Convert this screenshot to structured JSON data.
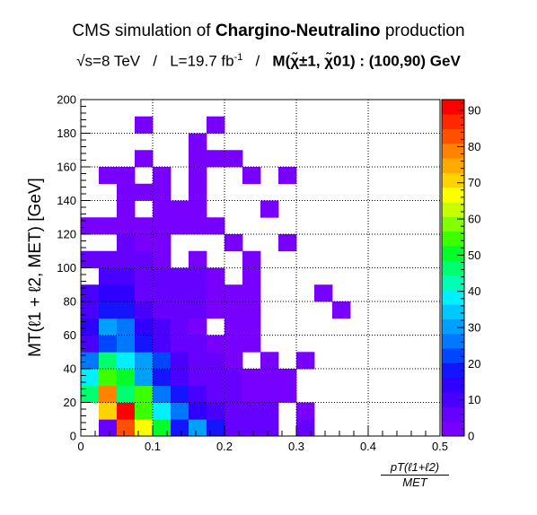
{
  "chart_data": {
    "type": "heatmap",
    "title_parts": {
      "prefix": "CMS simulation of ",
      "bold": "Chargino-Neutralino",
      "suffix": " production"
    },
    "subtitle_parts": {
      "energy": "√s=8 TeV",
      "separator": "/",
      "lumi": "L=19.7 fb",
      "lumi_exp": "-1",
      "mass_label": "M(χ̃",
      "mass_rest": "±1, χ̃01) : (100,90) GeV"
    },
    "xlabel_num": "pT(ℓ1+ℓ2)",
    "xlabel_den": "MET",
    "ylabel": "MT(ℓ1 + ℓ2, MET)   [GeV]",
    "x_bins": {
      "min": 0,
      "max": 0.5,
      "n": 20
    },
    "y_bins": {
      "min": 0,
      "max": 200,
      "n": 20
    },
    "xlim": [
      0,
      0.5
    ],
    "ylim": [
      0,
      200
    ],
    "x_ticks": [
      "0",
      "0.1",
      "0.2",
      "0.3",
      "0.4",
      "0.5"
    ],
    "y_ticks": [
      "0",
      "20",
      "40",
      "60",
      "80",
      "100",
      "120",
      "140",
      "160",
      "180",
      "200"
    ],
    "z_range": [
      0,
      93
    ],
    "z_ticks": [
      "0",
      "10",
      "20",
      "30",
      "40",
      "50",
      "60",
      "70",
      "80",
      "90"
    ],
    "grid": true,
    "palette": [
      "#7800ff",
      "#6600ff",
      "#4a00ff",
      "#3000ff",
      "#1414ff",
      "#0046ff",
      "#0078ff",
      "#00a0ff",
      "#00c8ff",
      "#00f0ff",
      "#00ffb4",
      "#00ff6e",
      "#00ff28",
      "#3cff00",
      "#82ff00",
      "#c8ff00",
      "#ffff00",
      "#ffd200",
      "#ffaa00",
      "#ff8200",
      "#ff5000",
      "#ff2800",
      "#ff0000"
    ],
    "cells": [
      [
        1,
        0,
        5
      ],
      [
        2,
        0,
        84
      ],
      [
        3,
        0,
        68
      ],
      [
        4,
        0,
        52
      ],
      [
        5,
        0,
        20
      ],
      [
        6,
        0,
        30
      ],
      [
        7,
        0,
        19
      ],
      [
        8,
        0,
        5
      ],
      [
        9,
        0,
        5
      ],
      [
        10,
        0,
        5
      ],
      [
        12,
        0,
        5
      ],
      [
        1,
        1,
        70
      ],
      [
        2,
        1,
        90
      ],
      [
        3,
        1,
        55
      ],
      [
        4,
        1,
        40
      ],
      [
        5,
        1,
        25
      ],
      [
        6,
        1,
        16
      ],
      [
        7,
        1,
        12
      ],
      [
        8,
        1,
        7
      ],
      [
        9,
        1,
        5
      ],
      [
        10,
        1,
        5
      ],
      [
        12,
        1,
        3
      ],
      [
        0,
        2,
        45
      ],
      [
        1,
        2,
        78
      ],
      [
        2,
        2,
        45
      ],
      [
        3,
        2,
        55
      ],
      [
        4,
        2,
        28
      ],
      [
        5,
        2,
        18
      ],
      [
        6,
        2,
        12
      ],
      [
        7,
        2,
        8
      ],
      [
        8,
        2,
        5
      ],
      [
        9,
        2,
        3
      ],
      [
        10,
        2,
        3
      ],
      [
        11,
        2,
        3
      ],
      [
        0,
        3,
        40
      ],
      [
        1,
        3,
        55
      ],
      [
        2,
        3,
        52
      ],
      [
        3,
        3,
        32
      ],
      [
        4,
        3,
        20
      ],
      [
        5,
        3,
        10
      ],
      [
        6,
        3,
        8
      ],
      [
        7,
        3,
        5
      ],
      [
        8,
        3,
        5
      ],
      [
        9,
        3,
        3
      ],
      [
        10,
        3,
        3
      ],
      [
        11,
        3,
        3
      ],
      [
        0,
        4,
        28
      ],
      [
        1,
        4,
        48
      ],
      [
        2,
        4,
        40
      ],
      [
        3,
        4,
        30
      ],
      [
        4,
        4,
        22
      ],
      [
        5,
        4,
        12
      ],
      [
        6,
        4,
        8
      ],
      [
        7,
        4,
        6
      ],
      [
        8,
        4,
        4
      ],
      [
        10,
        4,
        3
      ],
      [
        12,
        4,
        3
      ],
      [
        0,
        5,
        12
      ],
      [
        1,
        5,
        22
      ],
      [
        2,
        5,
        28
      ],
      [
        3,
        5,
        18
      ],
      [
        4,
        5,
        10
      ],
      [
        5,
        5,
        8
      ],
      [
        6,
        5,
        6
      ],
      [
        7,
        5,
        4
      ],
      [
        8,
        5,
        4
      ],
      [
        9,
        5,
        4
      ],
      [
        0,
        6,
        13
      ],
      [
        1,
        6,
        32
      ],
      [
        2,
        6,
        25
      ],
      [
        3,
        6,
        15
      ],
      [
        4,
        6,
        10
      ],
      [
        5,
        6,
        8
      ],
      [
        6,
        6,
        4
      ],
      [
        8,
        6,
        4
      ],
      [
        9,
        6,
        3
      ],
      [
        0,
        7,
        12
      ],
      [
        1,
        7,
        20
      ],
      [
        2,
        7,
        20
      ],
      [
        3,
        7,
        10
      ],
      [
        4,
        7,
        6
      ],
      [
        5,
        7,
        5
      ],
      [
        6,
        7,
        5
      ],
      [
        7,
        7,
        4
      ],
      [
        8,
        7,
        3
      ],
      [
        9,
        7,
        3
      ],
      [
        14,
        7,
        3
      ],
      [
        0,
        8,
        10
      ],
      [
        1,
        8,
        15
      ],
      [
        2,
        8,
        15
      ],
      [
        3,
        8,
        6
      ],
      [
        4,
        8,
        6
      ],
      [
        5,
        8,
        5
      ],
      [
        6,
        8,
        5
      ],
      [
        7,
        8,
        4
      ],
      [
        8,
        8,
        3
      ],
      [
        9,
        8,
        3
      ],
      [
        13,
        8,
        3
      ],
      [
        1,
        9,
        10
      ],
      [
        2,
        9,
        12
      ],
      [
        3,
        9,
        6
      ],
      [
        4,
        9,
        8
      ],
      [
        5,
        9,
        8
      ],
      [
        6,
        9,
        5
      ],
      [
        7,
        9,
        4
      ],
      [
        9,
        9,
        3
      ],
      [
        0,
        10,
        5
      ],
      [
        1,
        10,
        8
      ],
      [
        2,
        10,
        6
      ],
      [
        3,
        10,
        6
      ],
      [
        4,
        10,
        4
      ],
      [
        6,
        10,
        3
      ],
      [
        9,
        10,
        3
      ],
      [
        2,
        11,
        8
      ],
      [
        3,
        11,
        4
      ],
      [
        4,
        11,
        4
      ],
      [
        8,
        11,
        3
      ],
      [
        11,
        11,
        3
      ],
      [
        0,
        12,
        4
      ],
      [
        1,
        12,
        4
      ],
      [
        2,
        12,
        4
      ],
      [
        3,
        12,
        4
      ],
      [
        4,
        12,
        4
      ],
      [
        5,
        12,
        4
      ],
      [
        6,
        12,
        3
      ],
      [
        7,
        12,
        3
      ],
      [
        2,
        13,
        4
      ],
      [
        4,
        13,
        4
      ],
      [
        5,
        13,
        4
      ],
      [
        6,
        13,
        3
      ],
      [
        10,
        13,
        3
      ],
      [
        2,
        14,
        4
      ],
      [
        3,
        14,
        4
      ],
      [
        4,
        14,
        4
      ],
      [
        6,
        14,
        3
      ],
      [
        1,
        15,
        4
      ],
      [
        2,
        15,
        4
      ],
      [
        4,
        15,
        4
      ],
      [
        6,
        15,
        3
      ],
      [
        9,
        15,
        3
      ],
      [
        11,
        15,
        3
      ],
      [
        3,
        16,
        4
      ],
      [
        6,
        16,
        3
      ],
      [
        7,
        16,
        3
      ],
      [
        8,
        16,
        3
      ],
      [
        6,
        17,
        3
      ],
      [
        3,
        18,
        3
      ],
      [
        7,
        18,
        3
      ]
    ]
  }
}
